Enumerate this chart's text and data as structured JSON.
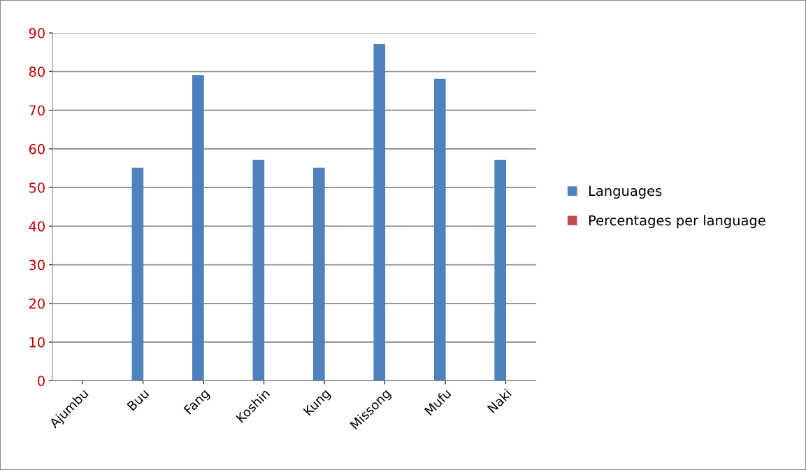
{
  "chart_data": {
    "type": "bar",
    "categories": [
      "Ajumbu",
      "Buu",
      "Fang",
      "Koshin",
      "Kung",
      "Missong",
      "Mufu",
      "Naki"
    ],
    "series": [
      {
        "name": "Languages",
        "color": "#4f81bd",
        "values": [
          0,
          55,
          79,
          57,
          55,
          87,
          78,
          57
        ]
      },
      {
        "name": "Percentages per language",
        "color": "#c0504d",
        "values": [
          null,
          null,
          null,
          null,
          null,
          null,
          null,
          null
        ]
      }
    ],
    "ylim": [
      0,
      90
    ],
    "yticks": [
      0,
      10,
      20,
      30,
      40,
      50,
      60,
      70,
      80,
      90
    ],
    "grid": "y",
    "legend": "right"
  }
}
